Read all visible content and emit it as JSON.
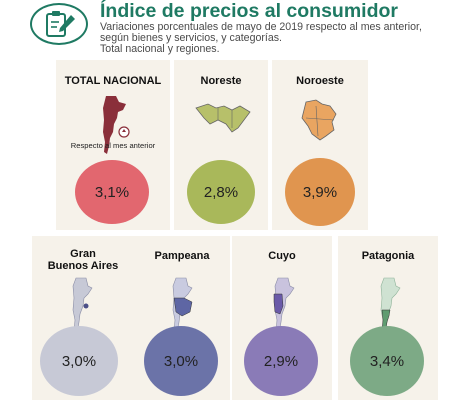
{
  "header": {
    "logo_icon": "clipboard-pencil-icon",
    "title": "Índice de precios al consumidor",
    "subtitle_lines": [
      "Variaciones porcentuales de mayo de 2019 respecto al mes anterior,",
      "según bienes y servicios, y categorías.",
      "Total nacional y regiones."
    ]
  },
  "regions": [
    {
      "id": "total",
      "label": "TOTAL NACIONAL",
      "note": "Respecto al mes anterior",
      "value": "3,1%",
      "color": "#e2676f",
      "map_icon": "argentina-map-icon"
    },
    {
      "id": "noreste",
      "label": "Noreste",
      "value": "2,8%",
      "color": "#a9b85a",
      "map_icon": "noreste-map-icon"
    },
    {
      "id": "noroeste",
      "label": "Noroeste",
      "value": "3,9%",
      "color": "#e0954f",
      "map_icon": "noroeste-map-icon"
    },
    {
      "id": "gba",
      "label_lines": [
        "Gran",
        "Buenos Aires"
      ],
      "value": "3,0%",
      "color": "#c7c9d6",
      "map_icon": "gran-buenos-aires-map-icon"
    },
    {
      "id": "pampeana",
      "label": "Pampeana",
      "value": "3,0%",
      "color": "#6b73a8",
      "map_icon": "pampeana-map-icon"
    },
    {
      "id": "cuyo",
      "label": "Cuyo",
      "value": "2,9%",
      "color": "#8a7bb7",
      "map_icon": "cuyo-map-icon"
    },
    {
      "id": "patagonia",
      "label": "Patagonia",
      "value": "3,4%",
      "color": "#7daa86",
      "map_icon": "patagonia-map-icon"
    }
  ]
}
